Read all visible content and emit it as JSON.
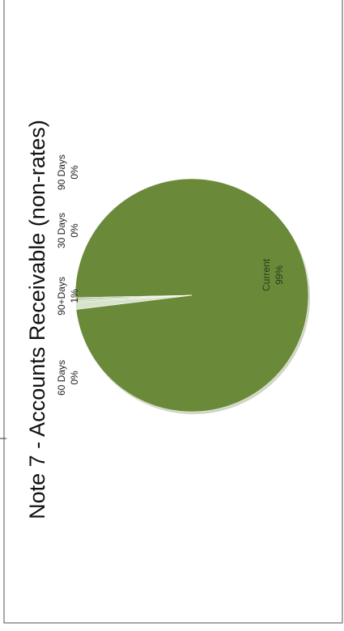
{
  "chart_data": {
    "type": "pie",
    "title": "Note 7 - Accounts Receivable (non-rates)",
    "categories": [
      "Current",
      "90+Days",
      "30 Days",
      "90 Days",
      "60 Days"
    ],
    "values": [
      99,
      1,
      0,
      0,
      0
    ],
    "value_labels": [
      "99%",
      "1%",
      "0%",
      "0%",
      "0%"
    ],
    "colors": [
      "#6a8a3a",
      "#d9e3cc",
      "#c3d4b0",
      "#b5c9a0",
      "#a9bf94"
    ],
    "orientation": "rotated 90 degrees counter-clockwise"
  }
}
